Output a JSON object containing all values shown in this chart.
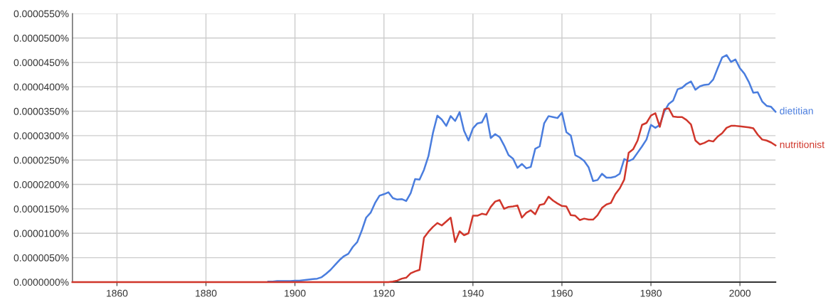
{
  "chart_data": {
    "type": "line",
    "x": [
      1850,
      1851,
      1852,
      1853,
      1854,
      1855,
      1856,
      1857,
      1858,
      1859,
      1860,
      1861,
      1862,
      1863,
      1864,
      1865,
      1866,
      1867,
      1868,
      1869,
      1870,
      1871,
      1872,
      1873,
      1874,
      1875,
      1876,
      1877,
      1878,
      1879,
      1880,
      1881,
      1882,
      1883,
      1884,
      1885,
      1886,
      1887,
      1888,
      1889,
      1890,
      1891,
      1892,
      1893,
      1894,
      1895,
      1896,
      1897,
      1898,
      1899,
      1900,
      1901,
      1902,
      1903,
      1904,
      1905,
      1906,
      1907,
      1908,
      1909,
      1910,
      1911,
      1912,
      1913,
      1914,
      1915,
      1916,
      1917,
      1918,
      1919,
      1920,
      1921,
      1922,
      1923,
      1924,
      1925,
      1926,
      1927,
      1928,
      1929,
      1930,
      1931,
      1932,
      1933,
      1934,
      1935,
      1936,
      1937,
      1938,
      1939,
      1940,
      1941,
      1942,
      1943,
      1944,
      1945,
      1946,
      1947,
      1948,
      1949,
      1950,
      1951,
      1952,
      1953,
      1954,
      1955,
      1956,
      1957,
      1958,
      1959,
      1960,
      1961,
      1962,
      1963,
      1964,
      1965,
      1966,
      1967,
      1968,
      1969,
      1970,
      1971,
      1972,
      1973,
      1974,
      1975,
      1976,
      1977,
      1978,
      1979,
      1980,
      1981,
      1982,
      1983,
      1984,
      1985,
      1986,
      1987,
      1988,
      1989,
      1990,
      1991,
      1992,
      1993,
      1994,
      1995,
      1996,
      1997,
      1998,
      1999,
      2000,
      2001,
      2002,
      2003,
      2004,
      2005,
      2006,
      2007,
      2008
    ],
    "series": [
      {
        "name": "dietitian",
        "color": "#4a7dde",
        "values": [
          null,
          null,
          null,
          null,
          null,
          null,
          null,
          null,
          null,
          null,
          null,
          null,
          null,
          null,
          null,
          null,
          null,
          null,
          null,
          null,
          null,
          null,
          null,
          null,
          null,
          null,
          null,
          null,
          null,
          null,
          null,
          null,
          null,
          null,
          null,
          null,
          null,
          null,
          null,
          null,
          null,
          null,
          null,
          null,
          1e-07,
          1e-07,
          2e-07,
          2e-07,
          2e-07,
          2e-07,
          3e-07,
          3e-07,
          4e-07,
          5e-07,
          6e-07,
          7e-07,
          1e-06,
          1.7e-06,
          2.5e-06,
          3.5e-06,
          4.5e-06,
          5.3e-06,
          5.8e-06,
          7.2e-06,
          8.2e-06,
          1.05e-05,
          1.32e-05,
          1.42e-05,
          1.62e-05,
          1.77e-05,
          1.8e-05,
          1.84e-05,
          1.72e-05,
          1.69e-05,
          1.7e-05,
          1.66e-05,
          1.82e-05,
          2.11e-05,
          2.1e-05,
          2.3e-05,
          2.58e-05,
          3.05e-05,
          3.41e-05,
          3.33e-05,
          3.2e-05,
          3.4e-05,
          3.3e-05,
          3.48e-05,
          3.1e-05,
          2.9e-05,
          3.15e-05,
          3.25e-05,
          3.27e-05,
          3.45e-05,
          2.95e-05,
          3.03e-05,
          2.97e-05,
          2.8e-05,
          2.6e-05,
          2.53e-05,
          2.34e-05,
          2.42e-05,
          2.33e-05,
          2.36e-05,
          2.73e-05,
          2.78e-05,
          3.25e-05,
          3.4e-05,
          3.38e-05,
          3.36e-05,
          3.47e-05,
          3.07e-05,
          3e-05,
          2.6e-05,
          2.55e-05,
          2.48e-05,
          2.35e-05,
          2.07e-05,
          2.09e-05,
          2.22e-05,
          2.14e-05,
          2.14e-05,
          2.16e-05,
          2.22e-05,
          2.52e-05,
          2.48e-05,
          2.52e-05,
          2.65e-05,
          2.78e-05,
          2.92e-05,
          3.22e-05,
          3.16e-05,
          3.22e-05,
          3.49e-05,
          3.65e-05,
          3.72e-05,
          3.95e-05,
          3.98e-05,
          4.06e-05,
          4.11e-05,
          3.94e-05,
          4.01e-05,
          4.04e-05,
          4.05e-05,
          4.15e-05,
          4.38e-05,
          4.6e-05,
          4.65e-05,
          4.51e-05,
          4.56e-05,
          4.38e-05,
          4.27e-05,
          4.1e-05,
          3.88e-05,
          3.89e-05,
          3.7e-05,
          3.61e-05,
          3.59e-05,
          3.49e-05
        ]
      },
      {
        "name": "nutritionist",
        "color": "#d0362b",
        "values": [
          0,
          0,
          0,
          0,
          0,
          0,
          0,
          0,
          0,
          0,
          0,
          0,
          0,
          0,
          0,
          0,
          0,
          0,
          0,
          0,
          0,
          0,
          0,
          0,
          0,
          0,
          0,
          0,
          0,
          0,
          0,
          0,
          0,
          0,
          0,
          0,
          0,
          0,
          0,
          0,
          0,
          0,
          0,
          0,
          0,
          0,
          0,
          0,
          0,
          0,
          0,
          0,
          0,
          0,
          0,
          0,
          0,
          0,
          0,
          0,
          0,
          0,
          0,
          0,
          0,
          0,
          0,
          0,
          0,
          0,
          0,
          0,
          1e-07,
          3e-07,
          7e-07,
          9e-07,
          1.8e-06,
          2.2e-06,
          2.5e-06,
          9.1e-06,
          1.03e-05,
          1.13e-05,
          1.21e-05,
          1.16e-05,
          1.24e-05,
          1.32e-05,
          8.2e-06,
          1.04e-05,
          9.6e-06,
          1e-05,
          1.36e-05,
          1.36e-05,
          1.4e-05,
          1.38e-05,
          1.54e-05,
          1.65e-05,
          1.68e-05,
          1.5e-05,
          1.54e-05,
          1.55e-05,
          1.57e-05,
          1.32e-05,
          1.42e-05,
          1.47e-05,
          1.39e-05,
          1.58e-05,
          1.6e-05,
          1.75e-05,
          1.67e-05,
          1.61e-05,
          1.56e-05,
          1.55e-05,
          1.37e-05,
          1.36e-05,
          1.27e-05,
          1.3e-05,
          1.28e-05,
          1.28e-05,
          1.37e-05,
          1.52e-05,
          1.59e-05,
          1.62e-05,
          1.8e-05,
          1.92e-05,
          2.1e-05,
          2.65e-05,
          2.72e-05,
          2.9e-05,
          3.22e-05,
          3.26e-05,
          3.41e-05,
          3.46e-05,
          3.18e-05,
          3.54e-05,
          3.56e-05,
          3.39e-05,
          3.38e-05,
          3.38e-05,
          3.32e-05,
          3.23e-05,
          2.9e-05,
          2.82e-05,
          2.85e-05,
          2.9e-05,
          2.88e-05,
          2.98e-05,
          3.05e-05,
          3.16e-05,
          3.2e-05,
          3.2e-05,
          3.19e-05,
          3.18e-05,
          3.17e-05,
          3.15e-05,
          3.02e-05,
          2.92e-05,
          2.9e-05,
          2.86e-05,
          2.8e-05
        ]
      }
    ],
    "xlim": [
      1850,
      2008
    ],
    "xticks": [
      1860,
      1880,
      1900,
      1920,
      1940,
      1960,
      1980,
      2000
    ],
    "ylim": [
      0,
      5.5e-05
    ],
    "yticks": [
      {
        "value": 0,
        "label": "0.0000000%"
      },
      {
        "value": 5e-06,
        "label": "0.0000050%"
      },
      {
        "value": 1e-05,
        "label": "0.0000100%"
      },
      {
        "value": 1.5e-05,
        "label": "0.0000150%"
      },
      {
        "value": 2e-05,
        "label": "0.0000200%"
      },
      {
        "value": 2.5e-05,
        "label": "0.0000250%"
      },
      {
        "value": 3e-05,
        "label": "0.0000300%"
      },
      {
        "value": 3.5e-05,
        "label": "0.0000350%"
      },
      {
        "value": 4e-05,
        "label": "0.0000400%"
      },
      {
        "value": 4.5e-05,
        "label": "0.0000450%"
      },
      {
        "value": 5e-05,
        "label": "0.0000500%"
      },
      {
        "value": 5.5e-05,
        "label": "0.0000550%"
      }
    ],
    "grid": true,
    "marker": "none",
    "line_style": "solid"
  }
}
